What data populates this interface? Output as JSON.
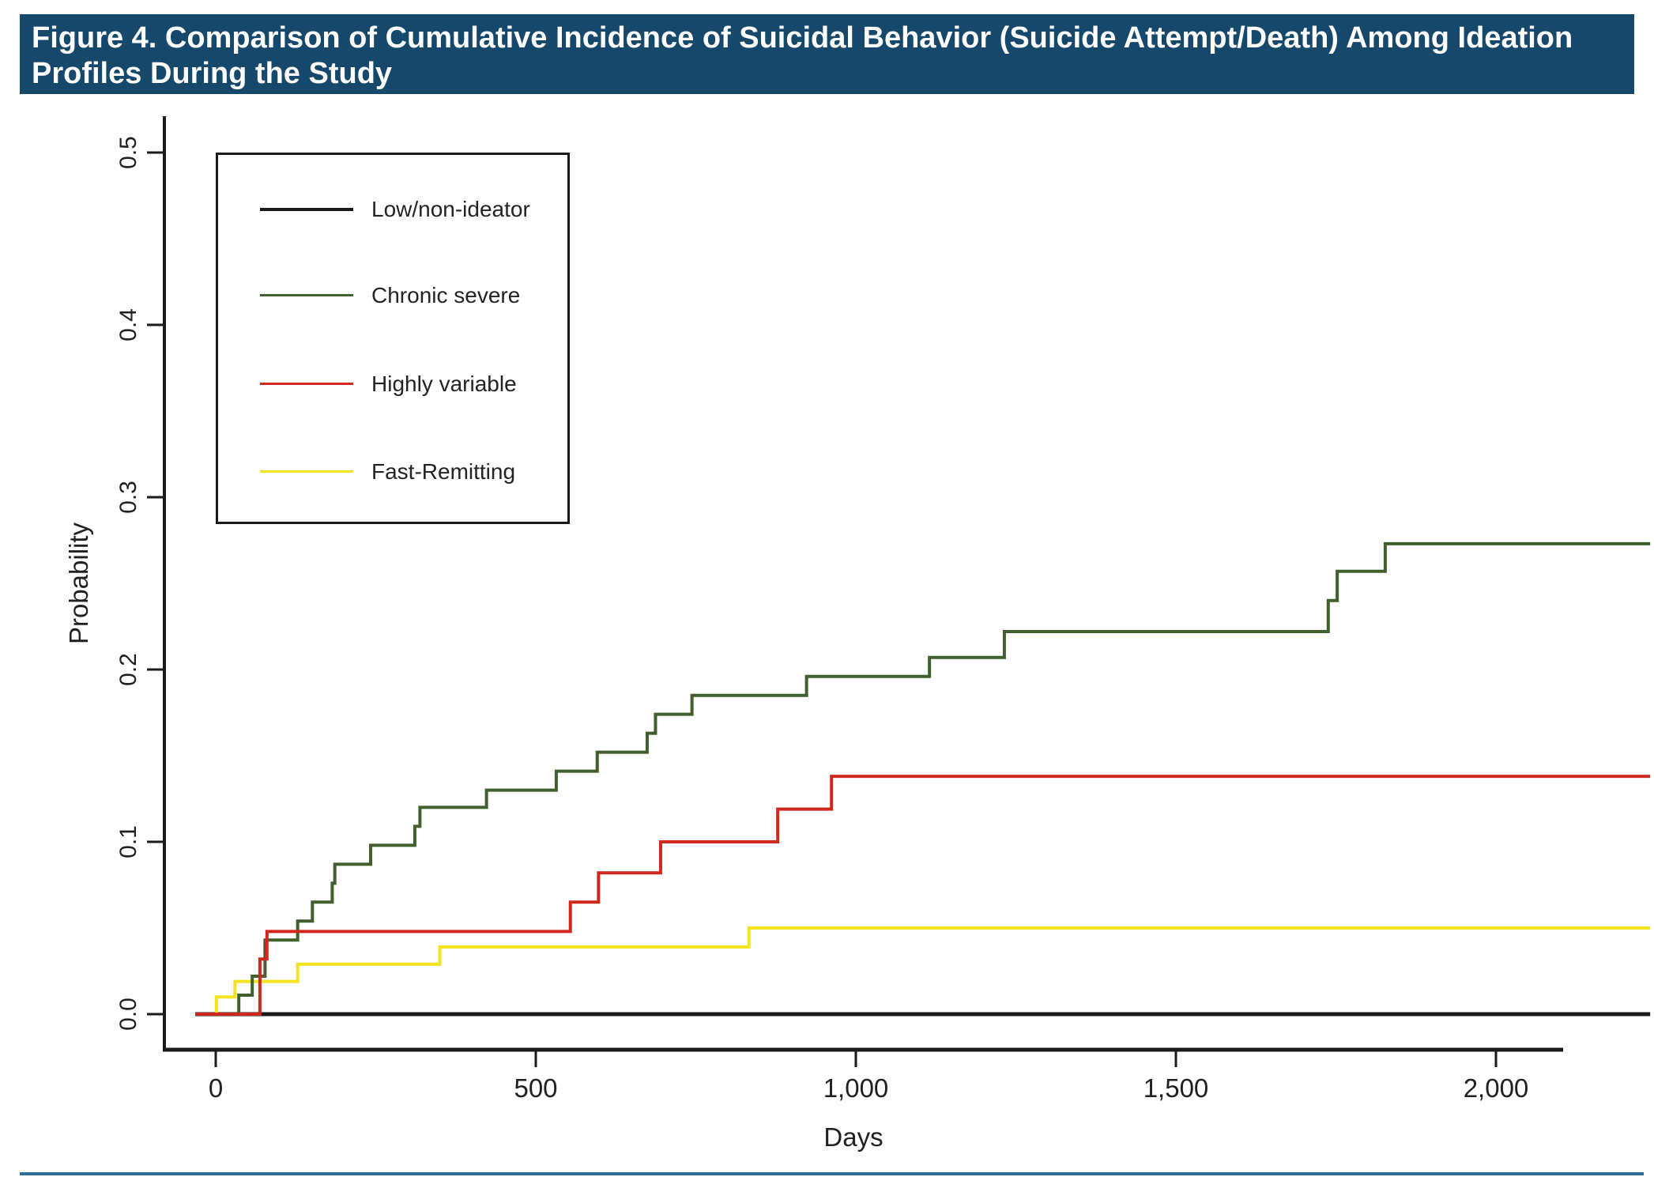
{
  "header": {
    "title": "Figure 4. Comparison of Cumulative Incidence of Suicidal Behavior (Suicide Attempt/Death) Among Ideation Profiles During the Study",
    "bg_color": "#16486C",
    "text_color": "#FFFFFF"
  },
  "chart_data": {
    "type": "line",
    "subtype": "step-post-cumulative-incidence",
    "title": "",
    "xlabel": "Days",
    "ylabel": "Probability",
    "xlim": [
      0,
      2240
    ],
    "ylim": [
      0,
      0.5
    ],
    "xticks": [
      0,
      500,
      1000,
      1500,
      2000
    ],
    "xtick_labels": [
      "0",
      "500",
      "1,000",
      "1,500",
      "2,000"
    ],
    "yticks": [
      0.0,
      0.1,
      0.2,
      0.3,
      0.4,
      0.5
    ],
    "ytick_labels": [
      "0.0",
      "0.1",
      "0.2",
      "0.3",
      "0.4",
      "0.5"
    ],
    "grid": false,
    "legend_position": "upper-left-box",
    "axis_color": "#1a1a1a",
    "series": [
      {
        "name": "Low/non-ideator",
        "color": "#1A1A1A",
        "stroke_width": 5,
        "z": 0,
        "steps": [],
        "final_value": 0.0
      },
      {
        "name": "Chronic severe",
        "color": "#41602E",
        "stroke_width": 4,
        "z": 2,
        "steps": [
          [
            36,
            0.011
          ],
          [
            57,
            0.022
          ],
          [
            77,
            0.043
          ],
          [
            128,
            0.054
          ],
          [
            151,
            0.065
          ],
          [
            182,
            0.076
          ],
          [
            186,
            0.087
          ],
          [
            242,
            0.098
          ],
          [
            311,
            0.109
          ],
          [
            319,
            0.12
          ],
          [
            423,
            0.13
          ],
          [
            532,
            0.141
          ],
          [
            596,
            0.152
          ],
          [
            674,
            0.163
          ],
          [
            687,
            0.174
          ],
          [
            744,
            0.185
          ],
          [
            923,
            0.196
          ],
          [
            1115,
            0.207
          ],
          [
            1232,
            0.222
          ],
          [
            1738,
            0.24
          ],
          [
            1752,
            0.257
          ],
          [
            1827,
            0.273
          ]
        ],
        "final_value": 0.273
      },
      {
        "name": "Highly variable",
        "color": "#CF281E",
        "stroke_width": 4,
        "z": 3,
        "steps": [
          [
            69,
            0.032
          ],
          [
            80,
            0.048
          ],
          [
            554,
            0.065
          ],
          [
            598,
            0.082
          ],
          [
            695,
            0.1
          ],
          [
            878,
            0.119
          ],
          [
            962,
            0.138
          ]
        ],
        "final_value": 0.138
      },
      {
        "name": "Fast-Remitting",
        "color": "#F4E41F",
        "stroke_width": 4,
        "z": 1,
        "steps": [
          [
            1,
            0.01
          ],
          [
            30,
            0.019
          ],
          [
            128,
            0.029
          ],
          [
            350,
            0.039
          ],
          [
            833,
            0.05
          ]
        ],
        "final_value": 0.05
      }
    ]
  },
  "footer": {
    "rule_color": "#2E6DA0"
  }
}
